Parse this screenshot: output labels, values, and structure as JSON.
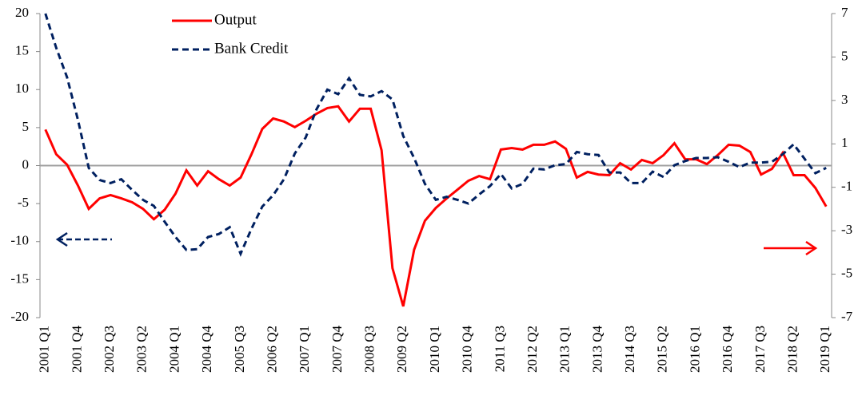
{
  "chart_data": {
    "type": "line",
    "categories": [
      "2001 Q1",
      null,
      null,
      "2001 Q4",
      null,
      null,
      "2002 Q3",
      null,
      null,
      "2003 Q2",
      null,
      null,
      "2004 Q1",
      null,
      null,
      "2004 Q4",
      null,
      null,
      "2005 Q3",
      null,
      null,
      "2006 Q2",
      null,
      null,
      "2007 Q1",
      null,
      null,
      "2007 Q4",
      null,
      null,
      "2008 Q3",
      null,
      null,
      "2009 Q2",
      null,
      null,
      "2010 Q1",
      null,
      null,
      "2010 Q4",
      null,
      null,
      "2011 Q3",
      null,
      null,
      "2012 Q2",
      null,
      null,
      "2013 Q1",
      null,
      null,
      "2013 Q4",
      null,
      null,
      "2014 Q3",
      null,
      null,
      "2015 Q2",
      null,
      null,
      "2016 Q1",
      null,
      null,
      "2016 Q4",
      null,
      null,
      "2017 Q3",
      null,
      null,
      "2018 Q2",
      null,
      null,
      "2019 Q1"
    ],
    "series": [
      {
        "name": "Output",
        "color": "#ff0000",
        "axis": "y2",
        "dash": false,
        "values": [
          1.66,
          0.52,
          0.04,
          -0.92,
          -1.99,
          -1.51,
          -1.36,
          -1.51,
          -1.69,
          -1.99,
          -2.47,
          -2.03,
          -1.29,
          -0.22,
          -0.92,
          -0.26,
          -0.63,
          -0.92,
          -0.55,
          0.52,
          1.69,
          2.17,
          2.03,
          1.77,
          2.06,
          2.39,
          2.65,
          2.73,
          2.03,
          2.62,
          2.62,
          0.7,
          -4.72,
          -6.48,
          -3.87,
          -2.54,
          -1.95,
          -1.51,
          -1.11,
          -0.7,
          -0.48,
          -0.63,
          0.74,
          0.81,
          0.74,
          0.96,
          0.96,
          1.11,
          0.77,
          -0.55,
          -0.29,
          -0.41,
          -0.44,
          0.11,
          -0.18,
          0.26,
          0.11,
          0.48,
          1.03,
          0.29,
          0.29,
          0.07,
          0.48,
          0.96,
          0.92,
          0.63,
          -0.41,
          -0.15,
          0.59,
          -0.44,
          -0.44,
          -1.03,
          -1.88
        ]
      },
      {
        "name": "Bank Credit",
        "color": "#002060",
        "axis": "y",
        "dash": true,
        "values": [
          20,
          15.5,
          11.6,
          6.0,
          -0.3,
          -1.9,
          -2.3,
          -1.8,
          -3.2,
          -4.5,
          -5.3,
          -7.4,
          -9.4,
          -11.1,
          -11.0,
          -9.4,
          -9.0,
          -8.1,
          -11.6,
          -8.3,
          -5.4,
          -3.9,
          -1.8,
          1.6,
          3.7,
          7.4,
          10.0,
          9.4,
          11.5,
          9.3,
          9.1,
          9.8,
          8.7,
          3.9,
          1.0,
          -2.4,
          -4.5,
          -4.1,
          -4.5,
          -5.0,
          -3.8,
          -2.7,
          -1.1,
          -3.0,
          -2.4,
          -0.4,
          -0.5,
          0.05,
          0.2,
          1.8,
          1.5,
          1.4,
          -0.9,
          -0.9,
          -2.3,
          -2.3,
          -0.8,
          -1.5,
          0.05,
          0.6,
          1.0,
          1.0,
          1.1,
          0.5,
          -0.2,
          0.4,
          0.4,
          0.5,
          1.5,
          2.8,
          0.9,
          -1.0,
          -0.3
        ]
      }
    ],
    "ylim": [
      -20,
      20
    ],
    "yticks": [
      -20,
      -15,
      -10,
      -5,
      0,
      5,
      10,
      15,
      20
    ],
    "y2lim": [
      -7,
      7
    ],
    "y2ticks": [
      -7,
      -5,
      -3,
      -1,
      1,
      3,
      5,
      7
    ]
  }
}
